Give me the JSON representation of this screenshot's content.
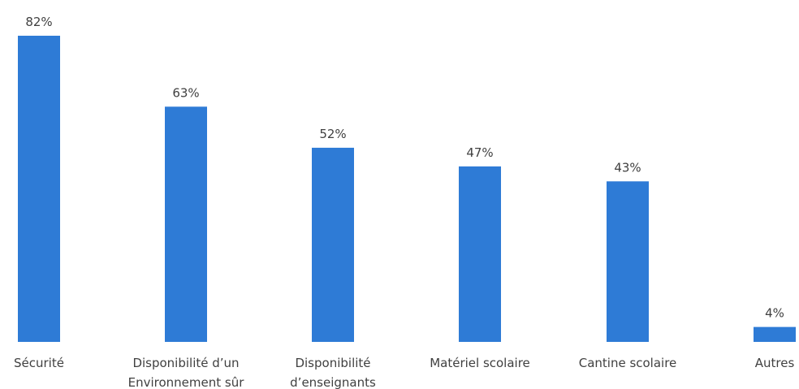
{
  "chart_data": {
    "type": "bar",
    "categories": [
      [
        "Sécurité"
      ],
      [
        "Disponibilité d’un",
        "Environnement sûr"
      ],
      [
        "Disponibilité",
        "d’enseignants"
      ],
      [
        "Matériel scolaire"
      ],
      [
        "Cantine scolaire"
      ],
      [
        "Autres"
      ]
    ],
    "values": [
      82,
      63,
      52,
      47,
      43,
      4
    ],
    "value_labels": [
      "82%",
      "63%",
      "52%",
      "47%",
      "43%",
      "4%"
    ],
    "title": "",
    "xlabel": "",
    "ylabel": "",
    "ylim": [
      0,
      82
    ],
    "grid": false,
    "legend": "none",
    "bar_color": "#2e7bd6"
  }
}
